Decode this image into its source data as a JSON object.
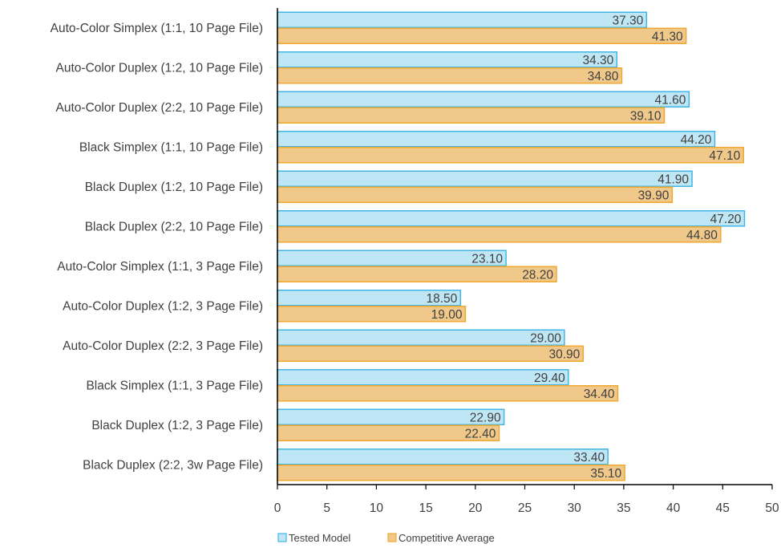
{
  "chart_data": {
    "type": "bar",
    "orientation": "horizontal",
    "categories": [
      "Auto-Color Simplex (1:1, 10 Page File)",
      "Auto-Color Duplex (1:2, 10 Page File)",
      "Auto-Color Duplex (2:2, 10 Page File)",
      "Black Simplex (1:1, 10 Page File)",
      "Black Duplex (1:2, 10 Page File)",
      "Black Duplex (2:2, 10 Page File)",
      "Auto-Color Simplex (1:1, 3 Page File)",
      "Auto-Color Duplex (1:2, 3 Page File)",
      "Auto-Color Duplex (2:2, 3 Page File)",
      "Black Simplex (1:1, 3 Page File)",
      "Black Duplex (1:2, 3 Page File)",
      "Black Duplex (2:2, 3w Page File)"
    ],
    "series": [
      {
        "name": "Tested Model",
        "color": "#bfe6f5",
        "border": "#41b6e6",
        "values": [
          37.3,
          34.3,
          41.6,
          44.2,
          41.9,
          47.2,
          23.1,
          18.5,
          29.0,
          29.4,
          22.9,
          33.4
        ],
        "labels": [
          "37.30",
          "34.30",
          "41.60",
          "44.20",
          "41.90",
          "47.20",
          "23.10",
          "18.50",
          "29.00",
          "29.40",
          "22.90",
          "33.40"
        ]
      },
      {
        "name": "Competitive Average",
        "color": "#f0c88a",
        "border": "#f0a830",
        "values": [
          41.3,
          34.8,
          39.1,
          47.1,
          39.9,
          44.8,
          28.2,
          19.0,
          30.9,
          34.4,
          22.4,
          35.1
        ],
        "labels": [
          "41.30",
          "34.80",
          "39.10",
          "47.10",
          "39.90",
          "44.80",
          "28.20",
          "19.00",
          "30.90",
          "34.40",
          "22.40",
          "35.10"
        ]
      }
    ],
    "xlim": [
      0,
      50
    ],
    "xticks": [
      "0",
      "5",
      "10",
      "15",
      "20",
      "25",
      "30",
      "35",
      "40",
      "45",
      "50"
    ],
    "legend_position": "bottom",
    "grid": false,
    "title": "",
    "xlabel": "",
    "ylabel": ""
  }
}
